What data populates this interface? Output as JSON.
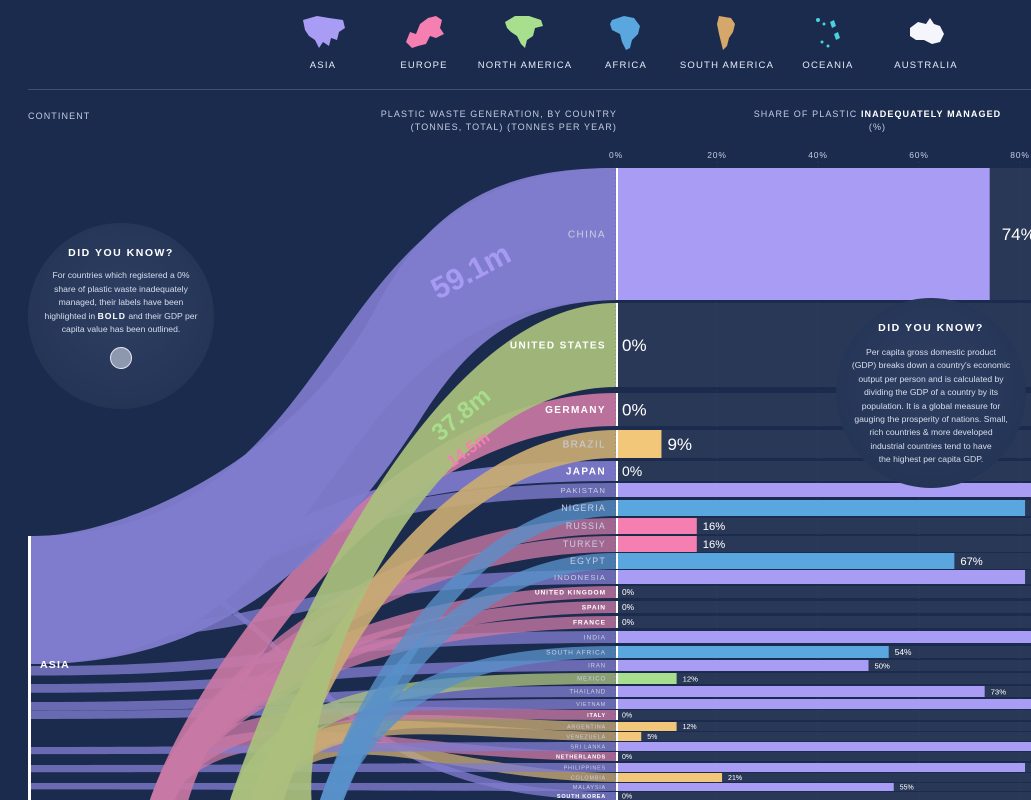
{
  "legend": [
    {
      "label": "ASIA",
      "color": "#a99cf5",
      "icon": "asia-map-icon"
    },
    {
      "label": "EUROPE",
      "color": "#f47fb0",
      "icon": "europe-map-icon"
    },
    {
      "label": "NORTH AMERICA",
      "color": "#a8df8e",
      "icon": "north-america-map-icon"
    },
    {
      "label": "AFRICA",
      "color": "#5aa7e0",
      "icon": "africa-map-icon"
    },
    {
      "label": "SOUTH AMERICA",
      "color": "#f3c77a",
      "icon": "south-america-map-icon"
    },
    {
      "label": "OCEANIA",
      "color": "#47d2dc",
      "icon": "oceania-map-icon"
    },
    {
      "label": "AUSTRALIA",
      "color": "#ffffff",
      "icon": "australia-map-icon"
    }
  ],
  "headers": {
    "continent": "CONTINENT",
    "generation_line1": "PLASTIC WASTE GENERATION, BY COUNTRY",
    "generation_line2": "(TONNES, TOTAL) (TONNES PER YEAR)",
    "share_pre": "SHARE OF PLASTIC ",
    "share_bold": "INADEQUATELY MANAGED",
    "share_unit": "(%)"
  },
  "dyk_left": {
    "title": "DID YOU KNOW?",
    "line1": "For countries which registered a 0%",
    "line2": "share of plastic waste inadequately",
    "line3": "managed, their labels have been",
    "line4_pre": "highlighted in ",
    "line4_bold": "BOLD",
    "line4_post": "  and their GDP per",
    "line5": "capita value has been outlined."
  },
  "dyk_right": {
    "title": "DID YOU KNOW?",
    "lines": [
      "Per capita gross domestic product",
      "(GDP) breaks down a country's economic",
      "output per person and is calculated by",
      "dividing the GDP of a country by its",
      "population. It is a global measure for",
      "gauging the prosperity of nations. Small,",
      "rich countries & more developed",
      "industrial countries tend to have",
      "the highest per capita GDP."
    ]
  },
  "colors": {
    "asia": "#a99cf5",
    "europe": "#f47fb0",
    "north_america": "#a8df8e",
    "africa": "#5aa7e0",
    "south_america": "#f3c77a",
    "ribbon_asia": "#7f7ccd",
    "ribbon_na": "#a9c07d",
    "ribbon_eu": "#c878a4",
    "ribbon_af": "#5991c9",
    "ribbon_sa": "#c9ab73"
  },
  "chart_data": {
    "type": "bar",
    "x_axis": {
      "min": 0,
      "max": 80,
      "ticks": [
        0,
        20,
        40,
        60,
        80
      ],
      "tick_labels": [
        "0%",
        "20%",
        "40%",
        "60%",
        "80%"
      ]
    },
    "continent_label": "ASIA",
    "flow_labels": [
      {
        "text": "59.1m",
        "color": "#a99cf5"
      },
      {
        "text": "37.8m",
        "color": "#a8df8e"
      },
      {
        "text": "14.5m",
        "color": "#f47fb0"
      }
    ],
    "countries": [
      {
        "name": "CHINA",
        "value": 74,
        "label": "74%",
        "continent": "asia",
        "bold": false
      },
      {
        "name": "UNITED STATES",
        "value": 0,
        "label": "0%",
        "continent": "north_america",
        "bold": true
      },
      {
        "name": "GERMANY",
        "value": 0,
        "label": "0%",
        "continent": "europe",
        "bold": true
      },
      {
        "name": "BRAZIL",
        "value": 9,
        "label": "9%",
        "continent": "south_america",
        "bold": false
      },
      {
        "name": "JAPAN",
        "value": 0,
        "label": "0%",
        "continent": "asia",
        "bold": true
      },
      {
        "name": "PAKISTAN",
        "value": 88,
        "label": "",
        "continent": "asia",
        "bold": false
      },
      {
        "name": "NIGERIA",
        "value": 81,
        "label": "",
        "continent": "africa",
        "bold": false
      },
      {
        "name": "RUSSIA",
        "value": 16,
        "label": "16%",
        "continent": "europe",
        "bold": false
      },
      {
        "name": "TURKEY",
        "value": 16,
        "label": "16%",
        "continent": "europe",
        "bold": false
      },
      {
        "name": "EGYPT",
        "value": 67,
        "label": "67%",
        "continent": "africa",
        "bold": false
      },
      {
        "name": "INDONESIA",
        "value": 81,
        "label": "",
        "continent": "asia",
        "bold": false
      },
      {
        "name": "UNITED KINGDOM",
        "value": 0,
        "label": "0%",
        "continent": "europe",
        "bold": true
      },
      {
        "name": "SPAIN",
        "value": 0,
        "label": "0%",
        "continent": "europe",
        "bold": true
      },
      {
        "name": "FRANCE",
        "value": 0,
        "label": "0%",
        "continent": "europe",
        "bold": true
      },
      {
        "name": "INDIA",
        "value": 87,
        "label": "",
        "continent": "asia",
        "bold": false
      },
      {
        "name": "SOUTH AFRICA",
        "value": 54,
        "label": "54%",
        "continent": "africa",
        "bold": false
      },
      {
        "name": "IRAN",
        "value": 50,
        "label": "50%",
        "continent": "asia",
        "bold": false
      },
      {
        "name": "MEXICO",
        "value": 12,
        "label": "12%",
        "continent": "north_america",
        "bold": false
      },
      {
        "name": "THAILAND",
        "value": 73,
        "label": "73%",
        "continent": "asia",
        "bold": false
      },
      {
        "name": "VIETNAM",
        "value": 86,
        "label": "",
        "continent": "asia",
        "bold": false
      },
      {
        "name": "ITALY",
        "value": 0,
        "label": "0%",
        "continent": "europe",
        "bold": true
      },
      {
        "name": "ARGENTINA",
        "value": 12,
        "label": "12%",
        "continent": "south_america",
        "bold": false
      },
      {
        "name": "VENEZUELA",
        "value": 5,
        "label": "5%",
        "continent": "south_america",
        "bold": false
      },
      {
        "name": "SRI LANKA",
        "value": 84,
        "label": "",
        "continent": "asia",
        "bold": false
      },
      {
        "name": "NETHERLANDS",
        "value": 0,
        "label": "0%",
        "continent": "europe",
        "bold": true
      },
      {
        "name": "PHILIPPINES",
        "value": 81,
        "label": "",
        "continent": "asia",
        "bold": false
      },
      {
        "name": "COLOMBIA",
        "value": 21,
        "label": "21%",
        "continent": "south_america",
        "bold": false
      },
      {
        "name": "MALAYSIA",
        "value": 55,
        "label": "55%",
        "continent": "asia",
        "bold": false
      },
      {
        "name": "SOUTH KOREA",
        "value": 0,
        "label": "0%",
        "continent": "asia",
        "bold": true
      }
    ]
  }
}
